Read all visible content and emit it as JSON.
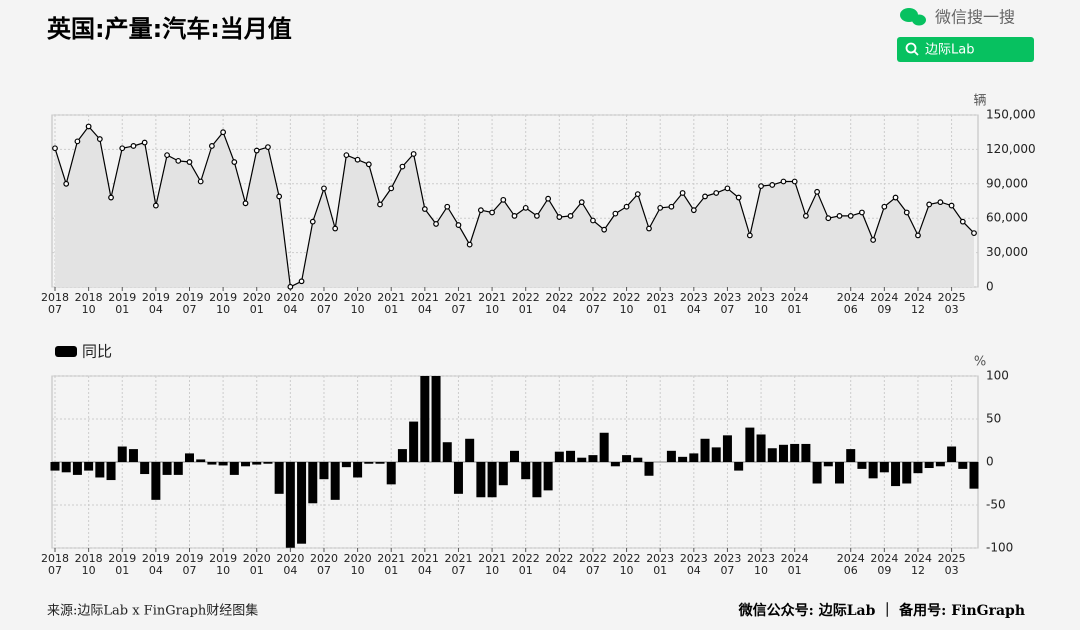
{
  "header": {
    "search_brand": "微信搜一搜",
    "search_button": "边际Lab"
  },
  "footer": {
    "source": "来源:边际Lab x FinGraph财经图集",
    "account": "微信公众号: 边际Lab  ｜  备用号: FinGraph"
  },
  "chart_data": [
    {
      "type": "line",
      "title": "英国:产量:汽车:当月值",
      "y_unit": "辆",
      "color": "#000000",
      "area_color": "#e3e3e3",
      "grid": true,
      "categories": [
        "2018\n07",
        null,
        null,
        "2018\n10",
        null,
        null,
        "2019\n01",
        null,
        null,
        "2019\n04",
        null,
        null,
        "2019\n07",
        null,
        null,
        "2019\n10",
        null,
        null,
        "2020\n01",
        null,
        null,
        "2020\n04",
        null,
        null,
        "2020\n07",
        null,
        null,
        "2020\n10",
        null,
        null,
        "2021\n01",
        null,
        null,
        "2021\n04",
        null,
        null,
        "2021\n07",
        null,
        null,
        "2021\n10",
        null,
        null,
        "2022\n01",
        null,
        null,
        "2022\n04",
        null,
        null,
        "2022\n07",
        null,
        null,
        "2022\n10",
        null,
        null,
        "2023\n01",
        null,
        null,
        "2023\n04",
        null,
        null,
        "2023\n07",
        null,
        null,
        "2023\n10",
        null,
        null,
        "2024\n01",
        null,
        null,
        null,
        null,
        "2024\n06",
        null,
        null,
        "2024\n09",
        null,
        null,
        "2024\n12",
        null,
        null,
        "2025\n03",
        null,
        null
      ],
      "values": [
        121000,
        90000,
        127000,
        140000,
        129000,
        78000,
        121000,
        123000,
        126000,
        71000,
        115000,
        110000,
        109000,
        92000,
        123000,
        135000,
        109000,
        73000,
        119000,
        122000,
        79000,
        200,
        5000,
        57000,
        86000,
        51000,
        115000,
        111000,
        107000,
        72000,
        86000,
        105000,
        116000,
        68000,
        55000,
        70000,
        54000,
        37000,
        67000,
        65000,
        76000,
        62000,
        69000,
        62000,
        77000,
        61000,
        62000,
        74000,
        58000,
        50000,
        64000,
        70000,
        81000,
        51000,
        69000,
        70000,
        82000,
        67000,
        79000,
        82000,
        86000,
        78000,
        45000,
        88000,
        89000,
        92000,
        92000,
        62000,
        83000,
        60000,
        62000,
        62000,
        65000,
        41000,
        70000,
        78000,
        65000,
        45000,
        72000,
        74000,
        71000,
        57000,
        47000
      ],
      "ylim": [
        0,
        150000
      ],
      "yticks": [
        0,
        {
          "value": 30000,
          "label": "30,000"
        },
        {
          "value": 60000,
          "label": "60,000"
        },
        {
          "value": 90000,
          "label": "90,000"
        },
        {
          "value": 120000,
          "label": "120,000"
        },
        {
          "value": 150000,
          "label": "150,000"
        }
      ]
    },
    {
      "type": "bar",
      "y_unit": "%",
      "grid": true,
      "legend": "top-left",
      "categories": [
        "2018\n07",
        null,
        null,
        "2018\n10",
        null,
        null,
        "2019\n01",
        null,
        null,
        "2019\n04",
        null,
        null,
        "2019\n07",
        null,
        null,
        "2019\n10",
        null,
        null,
        "2020\n01",
        null,
        null,
        "2020\n04",
        null,
        null,
        "2020\n07",
        null,
        null,
        "2020\n10",
        null,
        null,
        "2021\n01",
        null,
        null,
        "2021\n04",
        null,
        null,
        "2021\n07",
        null,
        null,
        "2021\n10",
        null,
        null,
        "2022\n01",
        null,
        null,
        "2022\n04",
        null,
        null,
        "2022\n07",
        null,
        null,
        "2022\n10",
        null,
        null,
        "2023\n01",
        null,
        null,
        "2023\n04",
        null,
        null,
        "2023\n07",
        null,
        null,
        "2023\n10",
        null,
        null,
        "2024\n01",
        null,
        null,
        null,
        null,
        "2024\n06",
        null,
        null,
        "2024\n09",
        null,
        null,
        "2024\n12",
        null,
        null,
        "2025\n03",
        null,
        null
      ],
      "series": [
        {
          "name": "同比",
          "color": "#000000",
          "values": [
            -10,
            -12,
            -15,
            -10,
            -18,
            -21,
            18,
            15,
            -14,
            -44,
            -15,
            -15,
            10,
            3,
            -3,
            -4,
            -15,
            -5,
            -3,
            -2,
            -37,
            -99.7,
            -95,
            -48,
            -20,
            -44,
            -6,
            -18,
            -2,
            -2,
            -26,
            15,
            47,
            100,
            100,
            23,
            -37,
            27,
            -41,
            -41,
            -27,
            13,
            -20,
            -41,
            -33,
            12,
            13,
            5,
            8,
            34,
            -5,
            8,
            5,
            -16,
            0,
            13,
            6,
            10,
            27,
            17,
            31,
            -10,
            40,
            32,
            16,
            20,
            21,
            21,
            -25,
            -5,
            -25,
            15,
            -8,
            -19,
            -12,
            -28,
            -25,
            -13,
            -7,
            -5,
            18,
            -8,
            -31
          ]
        }
      ],
      "ylim": [
        -100,
        100
      ],
      "yticks": [
        -100,
        -50,
        0,
        50,
        100
      ]
    }
  ]
}
